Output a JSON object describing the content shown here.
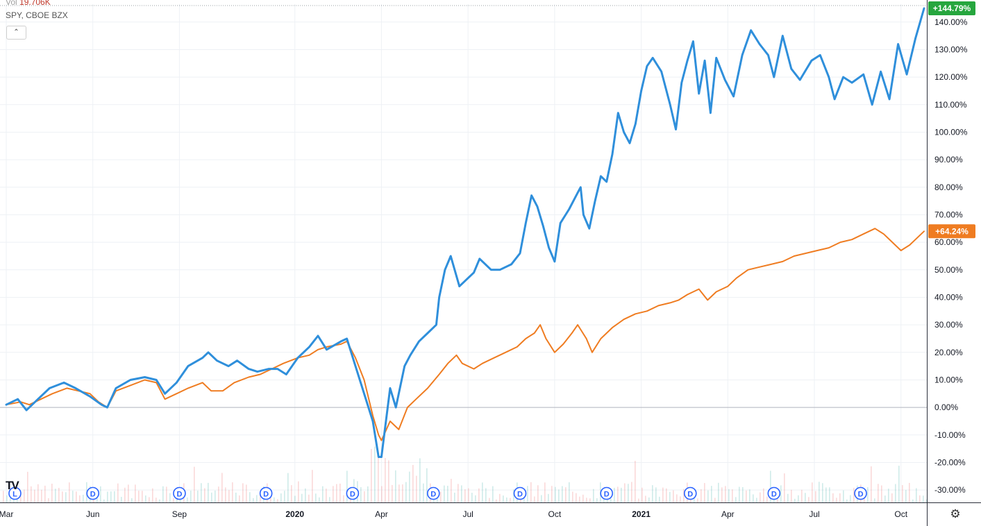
{
  "header": {
    "vol_label": "Vol",
    "vol_value": "19.706K",
    "symbol_line": "SPY, CBOE BZX",
    "collapse_icon": "chevron-up-icon"
  },
  "logo_text": "TV",
  "settings_icon": "gear-icon",
  "chart_data": {
    "type": "line",
    "y_ticks": [
      "140.00%",
      "130.00%",
      "120.00%",
      "110.00%",
      "100.00%",
      "90.00%",
      "80.00%",
      "70.00%",
      "60.00%",
      "50.00%",
      "40.00%",
      "30.00%",
      "20.00%",
      "10.00%",
      "0.00%",
      "-10.00%",
      "-20.00%",
      "-30.00%"
    ],
    "y_tick_values": [
      140,
      130,
      120,
      110,
      100,
      90,
      80,
      70,
      60,
      50,
      40,
      30,
      20,
      10,
      0,
      -10,
      -20,
      -30
    ],
    "ylim": [
      -34.5,
      146.5
    ],
    "x_ticks": [
      {
        "label": "Mar",
        "t": 0.0,
        "bold": false
      },
      {
        "label": "Jun",
        "t": 3.0,
        "bold": false
      },
      {
        "label": "Sep",
        "t": 6.0,
        "bold": false
      },
      {
        "label": "2020",
        "t": 10.0,
        "bold": true
      },
      {
        "label": "Apr",
        "t": 13.0,
        "bold": false
      },
      {
        "label": "Jul",
        "t": 16.0,
        "bold": false
      },
      {
        "label": "Oct",
        "t": 19.0,
        "bold": false
      },
      {
        "label": "2021",
        "t": 22.0,
        "bold": true
      },
      {
        "label": "Apr",
        "t": 25.0,
        "bold": false
      },
      {
        "label": "Jul",
        "t": 28.0,
        "bold": false
      },
      {
        "label": "Oct",
        "t": 31.0,
        "bold": false
      }
    ],
    "xlim": [
      0,
      31.8
    ],
    "dividend_markers": [
      {
        "t": 0.3,
        "label": "L"
      },
      {
        "t": 3.0,
        "label": "D"
      },
      {
        "t": 6.0,
        "label": "D"
      },
      {
        "t": 9.0,
        "label": "D"
      },
      {
        "t": 12.0,
        "label": "D"
      },
      {
        "t": 14.8,
        "label": "D"
      },
      {
        "t": 17.8,
        "label": "D"
      },
      {
        "t": 20.8,
        "label": "D"
      },
      {
        "t": 23.7,
        "label": "D"
      },
      {
        "t": 26.6,
        "label": "D"
      },
      {
        "t": 29.6,
        "label": "D"
      }
    ],
    "series": [
      {
        "color": "#2f8fdb",
        "badge_text": "+144.79%",
        "badge_color": "#26a63e",
        "points": [
          [
            0.0,
            1
          ],
          [
            0.4,
            3
          ],
          [
            0.7,
            -1
          ],
          [
            1.1,
            3
          ],
          [
            1.5,
            7
          ],
          [
            2.0,
            9
          ],
          [
            2.4,
            7
          ],
          [
            2.9,
            4
          ],
          [
            3.3,
            1
          ],
          [
            3.5,
            0
          ],
          [
            3.8,
            7
          ],
          [
            4.3,
            10
          ],
          [
            4.8,
            11
          ],
          [
            5.2,
            10
          ],
          [
            5.5,
            5
          ],
          [
            5.9,
            9
          ],
          [
            6.3,
            15
          ],
          [
            6.8,
            18
          ],
          [
            7.0,
            20
          ],
          [
            7.3,
            17
          ],
          [
            7.7,
            15
          ],
          [
            8.0,
            17
          ],
          [
            8.4,
            14
          ],
          [
            8.7,
            13
          ],
          [
            9.1,
            14
          ],
          [
            9.4,
            14
          ],
          [
            9.7,
            12
          ],
          [
            10.1,
            18
          ],
          [
            10.5,
            22
          ],
          [
            10.8,
            26
          ],
          [
            11.1,
            21
          ],
          [
            11.6,
            24
          ],
          [
            11.8,
            25
          ],
          [
            12.1,
            15
          ],
          [
            12.4,
            5
          ],
          [
            12.7,
            -5
          ],
          [
            12.9,
            -18
          ],
          [
            13.0,
            -18
          ],
          [
            13.3,
            7
          ],
          [
            13.5,
            0
          ],
          [
            13.8,
            15
          ],
          [
            14.0,
            19
          ],
          [
            14.3,
            24
          ],
          [
            14.6,
            27
          ],
          [
            14.9,
            30
          ],
          [
            15.0,
            40
          ],
          [
            15.2,
            50
          ],
          [
            15.4,
            55
          ],
          [
            15.7,
            44
          ],
          [
            16.0,
            47
          ],
          [
            16.2,
            49
          ],
          [
            16.4,
            54
          ],
          [
            16.8,
            50
          ],
          [
            17.1,
            50
          ],
          [
            17.5,
            52
          ],
          [
            17.8,
            56
          ],
          [
            18.0,
            67
          ],
          [
            18.2,
            77
          ],
          [
            18.4,
            73
          ],
          [
            18.6,
            66
          ],
          [
            18.8,
            58
          ],
          [
            19.0,
            53
          ],
          [
            19.2,
            67
          ],
          [
            19.5,
            72
          ],
          [
            19.8,
            78
          ],
          [
            19.9,
            80
          ],
          [
            20.0,
            70
          ],
          [
            20.2,
            65
          ],
          [
            20.4,
            75
          ],
          [
            20.6,
            84
          ],
          [
            20.8,
            82
          ],
          [
            21.0,
            92
          ],
          [
            21.2,
            107
          ],
          [
            21.4,
            100
          ],
          [
            21.6,
            96
          ],
          [
            21.8,
            103
          ],
          [
            22.0,
            115
          ],
          [
            22.2,
            124
          ],
          [
            22.4,
            127
          ],
          [
            22.7,
            122
          ],
          [
            23.0,
            110
          ],
          [
            23.2,
            101
          ],
          [
            23.4,
            118
          ],
          [
            23.6,
            126
          ],
          [
            23.8,
            133
          ],
          [
            24.0,
            114
          ],
          [
            24.2,
            126
          ],
          [
            24.4,
            107
          ],
          [
            24.6,
            127
          ],
          [
            24.9,
            119
          ],
          [
            25.2,
            113
          ],
          [
            25.5,
            128
          ],
          [
            25.8,
            137
          ],
          [
            26.1,
            132
          ],
          [
            26.4,
            128
          ],
          [
            26.6,
            120
          ],
          [
            26.9,
            135
          ],
          [
            27.2,
            123
          ],
          [
            27.5,
            119
          ],
          [
            27.9,
            126
          ],
          [
            28.2,
            128
          ],
          [
            28.5,
            120
          ],
          [
            28.7,
            112
          ],
          [
            29.0,
            120
          ],
          [
            29.3,
            118
          ],
          [
            29.7,
            121
          ],
          [
            30.0,
            110
          ],
          [
            30.3,
            122
          ],
          [
            30.6,
            112
          ],
          [
            30.9,
            132
          ],
          [
            31.2,
            121
          ],
          [
            31.5,
            134
          ],
          [
            31.8,
            145
          ]
        ]
      },
      {
        "color": "#ef7c21",
        "badge_text": "+64.24%",
        "badge_color": "#ef7c21",
        "points": [
          [
            0.0,
            1
          ],
          [
            0.5,
            2
          ],
          [
            0.8,
            1
          ],
          [
            1.2,
            3
          ],
          [
            1.6,
            5
          ],
          [
            2.1,
            7
          ],
          [
            2.5,
            6
          ],
          [
            2.9,
            5
          ],
          [
            3.2,
            2
          ],
          [
            3.5,
            0
          ],
          [
            3.8,
            6
          ],
          [
            4.3,
            8
          ],
          [
            4.8,
            10
          ],
          [
            5.2,
            9
          ],
          [
            5.5,
            3
          ],
          [
            5.9,
            5
          ],
          [
            6.3,
            7
          ],
          [
            6.8,
            9
          ],
          [
            7.1,
            6
          ],
          [
            7.5,
            6
          ],
          [
            7.9,
            9
          ],
          [
            8.4,
            11
          ],
          [
            8.8,
            12
          ],
          [
            9.2,
            14
          ],
          [
            9.6,
            16
          ],
          [
            10.1,
            18
          ],
          [
            10.5,
            19
          ],
          [
            10.8,
            21
          ],
          [
            11.1,
            22
          ],
          [
            11.6,
            23
          ],
          [
            11.8,
            24
          ],
          [
            12.1,
            18
          ],
          [
            12.4,
            10
          ],
          [
            12.7,
            -3
          ],
          [
            12.9,
            -10
          ],
          [
            13.0,
            -12
          ],
          [
            13.3,
            -5
          ],
          [
            13.6,
            -8
          ],
          [
            13.9,
            0
          ],
          [
            14.2,
            3
          ],
          [
            14.6,
            7
          ],
          [
            15.0,
            12
          ],
          [
            15.3,
            16
          ],
          [
            15.6,
            19
          ],
          [
            15.8,
            16
          ],
          [
            16.2,
            14
          ],
          [
            16.5,
            16
          ],
          [
            16.9,
            18
          ],
          [
            17.3,
            20
          ],
          [
            17.7,
            22
          ],
          [
            18.0,
            25
          ],
          [
            18.3,
            27
          ],
          [
            18.5,
            30
          ],
          [
            18.7,
            25
          ],
          [
            19.0,
            20
          ],
          [
            19.3,
            23
          ],
          [
            19.6,
            27
          ],
          [
            19.8,
            30
          ],
          [
            20.1,
            25
          ],
          [
            20.3,
            20
          ],
          [
            20.6,
            25
          ],
          [
            21.0,
            29
          ],
          [
            21.4,
            32
          ],
          [
            21.8,
            34
          ],
          [
            22.2,
            35
          ],
          [
            22.6,
            37
          ],
          [
            23.0,
            38
          ],
          [
            23.3,
            39
          ],
          [
            23.6,
            41
          ],
          [
            24.0,
            43
          ],
          [
            24.3,
            39
          ],
          [
            24.6,
            42
          ],
          [
            25.0,
            44
          ],
          [
            25.3,
            47
          ],
          [
            25.7,
            50
          ],
          [
            26.1,
            51
          ],
          [
            26.5,
            52
          ],
          [
            26.9,
            53
          ],
          [
            27.3,
            55
          ],
          [
            27.7,
            56
          ],
          [
            28.1,
            57
          ],
          [
            28.5,
            58
          ],
          [
            28.9,
            60
          ],
          [
            29.3,
            61
          ],
          [
            29.7,
            63
          ],
          [
            30.1,
            65
          ],
          [
            30.4,
            63
          ],
          [
            30.7,
            60
          ],
          [
            31.0,
            57
          ],
          [
            31.3,
            59
          ],
          [
            31.5,
            61
          ],
          [
            31.8,
            64
          ]
        ]
      }
    ]
  }
}
